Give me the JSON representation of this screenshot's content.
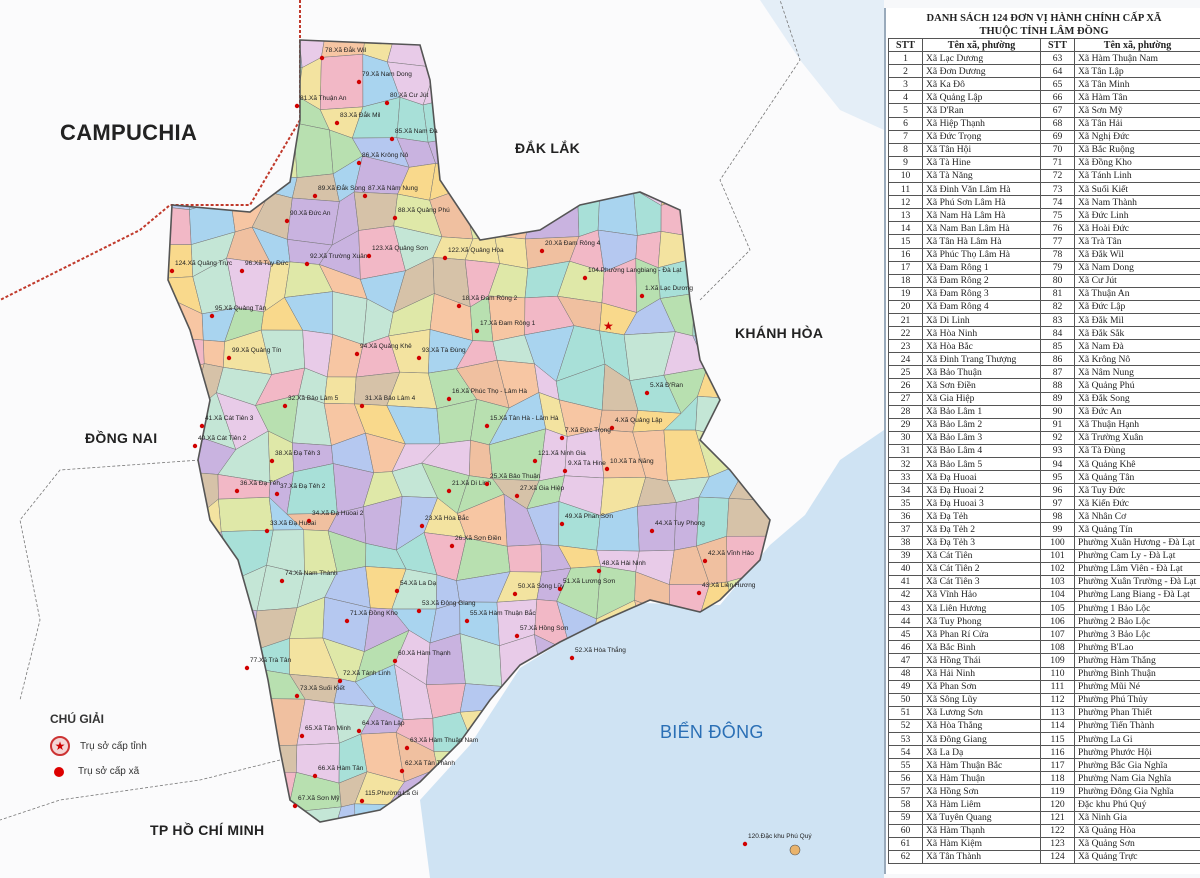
{
  "map": {
    "regions": {
      "campuchia": "CAMPUCHIA",
      "dak_lak": "ĐẮK LẮK",
      "khanh_hoa": "KHÁNH HÒA",
      "dong_nai": "ĐỒNG NAI",
      "hcm": "TP HỒ CHÍ MINH",
      "bien_dong": "BIỂN ĐÔNG"
    },
    "legend": {
      "title": "CHÚ GIẢI",
      "provincial_hq": "Trụ sở cấp tỉnh",
      "commune_hq": "Trụ sở cấp xã"
    },
    "colors": {
      "sea": "#cfe3f3",
      "land": "#ffffff",
      "border": "#c0392b",
      "dot": "#d00000"
    },
    "communes": [
      "78.Xã Đắk Wil",
      "79.Xã Nam Dong",
      "80.Xã Cư Jút",
      "81.Xã Thuận An",
      "83.Xã Đắk Mil",
      "85.Xã Nam Đà",
      "86.Xã Krông Nô",
      "87.Xã Nâm Nung",
      "89.Xã Đắk Song",
      "88.Xã Quảng Phú",
      "90.Xã Đức An",
      "124.Xã Quảng Trực",
      "96.Xã Tuy Đức",
      "92.Xã Trường Xuân",
      "123.Xã Quảng Sơn",
      "122.Xã Quảng Hòa",
      "20.Xã Đam Rông 4",
      "104.Phường Langbiang - Đà Lạt",
      "1.Xã Lạc Dương",
      "95.Xã Quảng Tân",
      "18.Xã Đam Rông 2",
      "17.Xã Đam Rông 1",
      "94.Xã Quảng Khê",
      "93.Xã Tà Đùng",
      "99.Xã Quảng Tín",
      "5.Xã Đ'Ran",
      "32.Xã Bảo Lâm 5",
      "31.Xã Bảo Lâm 4",
      "16.Xã Phúc Thọ - Lâm Hà",
      "15.Xã Tân Hà - Lâm Hà",
      "4.Xã Quảng Lập",
      "7.Xã Đức Trọng",
      "41.Xã Cát Tiên 3",
      "40.Xã Cát Tiên 2",
      "38.Xã Đạ Tẻh 3",
      "9.Xã Tà Hine",
      "10.Xã Tà Năng",
      "121.Xã Ninh Gia",
      "21.Xã Di Linh",
      "25.Xã Bảo Thuận",
      "27.Xã Gia Hiệp",
      "36.Xã Đạ Tẻh",
      "37.Xã Đạ Tẻh 2",
      "34.Xã Đạ Huoai 2",
      "33.Xã Đạ Huoai",
      "23.Xã Hòa Bắc",
      "26.Xã Sơn Điền",
      "49.Xã Phan Sơn",
      "44.Xã Tuy Phong",
      "48.Xã Hải Ninh",
      "42.Xã Vĩnh Hảo",
      "43.Xã Liên Hương",
      "74.Xã Nam Thành",
      "54.Xã La Dạ",
      "50.Xã Sông Lũy",
      "51.Xã Lương Sơn",
      "55.Xã Hàm Thuận Bắc",
      "57.Xã Hồng Sơn",
      "53.Xã Đông Giang",
      "71.Xã Đồng Kho",
      "77.Xã Trà Tân",
      "60.Xã Hàm Thạnh",
      "72.Xã Tánh Linh",
      "52.Xã Hòa Thắng",
      "73.Xã Suối Kiết",
      "65.Xã Tân Minh",
      "64.Xã Tân Lập",
      "63.Xã Hàm Thuận Nam",
      "62.Xã Tân Thành",
      "66.Xã Hàm Tân",
      "67.Xã Sơn Mỹ",
      "115.Phường La Gi",
      "120.Đặc khu Phú Quý"
    ]
  },
  "table": {
    "title_line1": "DANH SÁCH 124 ĐƠN VỊ HÀNH CHÍNH CẤP XÃ",
    "title_line2": "THUỘC TỈNH LÂM ĐỒNG",
    "headers": [
      "STT",
      "Tên xã, phường",
      "STT",
      "Tên xã, phường"
    ],
    "names": [
      "Xã Lạc Dương",
      "Xã Đơn Dương",
      "Xã Ka Đô",
      "Xã Quảng Lập",
      "Xã D'Ran",
      "Xã Hiệp Thạnh",
      "Xã Đức Trọng",
      "Xã Tân Hội",
      "Xã Tà Hine",
      "Xã Tà Năng",
      "Xã Đinh Văn Lâm Hà",
      "Xã Phú Sơn Lâm Hà",
      "Xã Nam Hà Lâm Hà",
      "Xã Nam Ban Lâm Hà",
      "Xã Tân Hà Lâm Hà",
      "Xã Phúc Thọ Lâm Hà",
      "Xã Đam Rông 1",
      "Xã Đam Rông 2",
      "Xã Đam Rông 3",
      "Xã Đam Rông 4",
      "Xã Di Linh",
      "Xã Hòa Ninh",
      "Xã Hòa Bắc",
      "Xã Đinh Trang Thượng",
      "Xã Bảo Thuận",
      "Xã Sơn Điền",
      "Xã Gia Hiệp",
      "Xã Bảo Lâm 1",
      "Xã Bảo Lâm 2",
      "Xã Bảo Lâm 3",
      "Xã Bảo Lâm 4",
      "Xã Bảo Lâm 5",
      "Xã Đạ Huoai",
      "Xã Đạ Huoai 2",
      "Xã Đạ Huoai 3",
      "Xã Đạ Tẻh",
      "Xã Đạ Tẻh 2",
      "Xã Đạ Tẻh 3",
      "Xã Cát Tiên",
      "Xã Cát Tiên 2",
      "Xã Cát Tiên 3",
      "Xã Vĩnh Hảo",
      "Xã Liên Hương",
      "Xã Tuy Phong",
      "Xã Phan Rí Cửa",
      "Xã Bắc Bình",
      "Xã Hồng Thái",
      "Xã Hải Ninh",
      "Xã Phan Sơn",
      "Xã Sông Lũy",
      "Xã Lương Sơn",
      "Xã Hòa Thắng",
      "Xã Đông Giang",
      "Xã La Dạ",
      "Xã Hàm Thuận Bắc",
      "Xã Hàm Thuận",
      "Xã Hồng Sơn",
      "Xã Hàm Liêm",
      "Xã Tuyên Quang",
      "Xã Hàm Thạnh",
      "Xã Hàm Kiệm",
      "Xã Tân Thành",
      "Xã Hàm Thuận Nam",
      "Xã Tân Lập",
      "Xã Tân Minh",
      "Xã Hàm Tân",
      "Xã Sơn Mỹ",
      "Xã Tân Hải",
      "Xã Nghị Đức",
      "Xã Bắc Ruộng",
      "Xã Đồng Kho",
      "Xã Tánh Linh",
      "Xã Suối Kiết",
      "Xã Nam Thành",
      "Xã Đức Linh",
      "Xã Hoài Đức",
      "Xã Trà Tân",
      "Xã Đắk Wil",
      "Xã Nam Dong",
      "Xã Cư Jút",
      "Xã Thuận An",
      "Xã Đức Lập",
      "Xã Đắk Mil",
      "Xã Đắk Sắk",
      "Xã Nam Đà",
      "Xã Krông Nô",
      "Xã Nâm Nung",
      "Xã Quảng Phú",
      "Xã Đắk Song",
      "Xã Đức An",
      "Xã Thuận Hạnh",
      "Xã Trường Xuân",
      "Xã Tà Đùng",
      "Xã Quảng Khê",
      "Xã Quảng Tân",
      "Xã Tuy Đức",
      "Xã Kiến Đức",
      "Xã Nhân Cơ",
      "Xã Quảng Tín",
      "Phường Xuân Hương - Đà Lạt",
      "Phường Cam Ly - Đà Lạt",
      "Phường Lâm Viên - Đà Lạt",
      "Phường Xuân Trường - Đà Lạt",
      "Phường Lang Biang - Đà Lạt",
      "Phường 1 Bảo Lộc",
      "Phường 2 Bảo Lộc",
      "Phường 3 Bảo Lộc",
      "Phường B'Lao",
      "Phường Hàm Thắng",
      "Phường Bình Thuận",
      "Phường Mũi Né",
      "Phường Phú Thủy",
      "Phường Phan Thiết",
      "Phường Tiến Thành",
      "Phường La Gi",
      "Phường Phước Hội",
      "Phường Bắc Gia Nghĩa",
      "Phường Nam Gia Nghĩa",
      "Phường Đông Gia Nghĩa",
      "Đặc khu Phú Quý",
      "Xã Ninh Gia",
      "Xã Quảng Hòa",
      "Xã Quảng Sơn",
      "Xã Quảng Trực"
    ]
  }
}
